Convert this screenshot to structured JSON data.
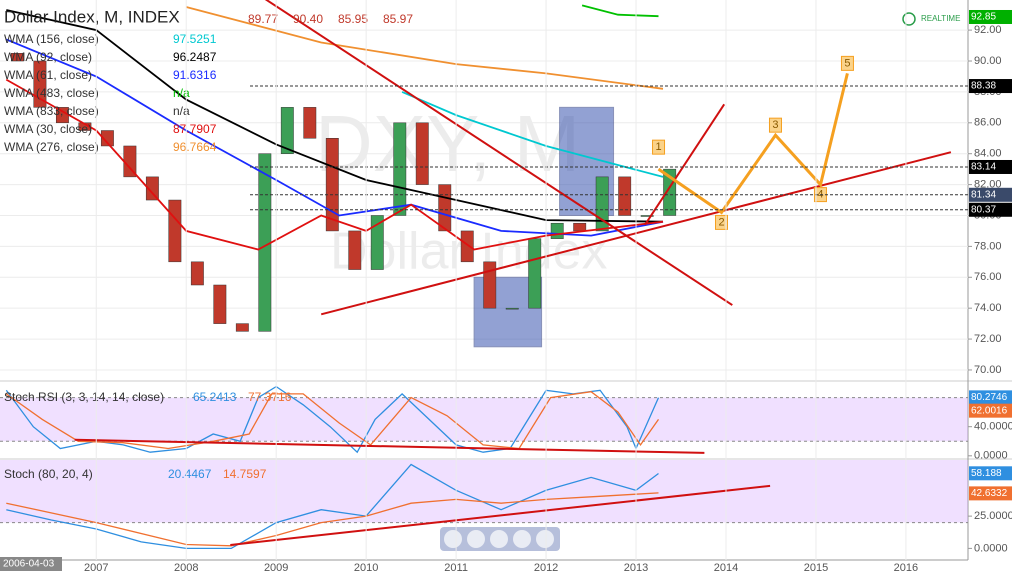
{
  "chart_data": [
    {
      "type": "candlestick",
      "title": "Dollar Index, M, INDEX",
      "last_bar": {
        "values": [
          89.77,
          90.4,
          85.95,
          85.97
        ],
        "value_labels": [
          "89.77",
          "90.40",
          "85.95",
          "85.97"
        ]
      },
      "realtime": "REALTIME",
      "watermark": [
        "DXY, M",
        "Dollar Index"
      ],
      "date_label": "2006-04-03",
      "xlim": [
        2005.93,
        2016.69
      ],
      "xticks": [
        2007,
        2008,
        2009,
        2010,
        2011,
        2012,
        2013,
        2014,
        2015,
        2016
      ],
      "ylim": [
        69.35,
        93.95
      ],
      "yticks": [
        {
          "value": 70,
          "label": "70.00"
        },
        {
          "value": 72,
          "label": "72.00"
        },
        {
          "value": 74,
          "label": "74.00"
        },
        {
          "value": 76,
          "label": "76.00"
        },
        {
          "value": 78,
          "label": "78.00"
        },
        {
          "value": 80,
          "label": "80.00"
        },
        {
          "value": 82,
          "label": "82.00"
        },
        {
          "value": 84,
          "label": "84.00"
        },
        {
          "value": 86,
          "label": "86.00"
        },
        {
          "value": 88,
          "label": "88.00"
        },
        {
          "value": 90,
          "label": "90.00"
        },
        {
          "value": 92,
          "label": "92.00"
        }
      ],
      "grid": true,
      "up_color": "#3c9f56",
      "down_color": "#c0392b",
      "x": [
        2006,
        2006.25,
        2006.5,
        2006.75,
        2007,
        2007.25,
        2007.5,
        2007.75,
        2008,
        2008.25,
        2008.5,
        2008.75,
        2009,
        2009.25,
        2009.5,
        2009.75,
        2010,
        2010.25,
        2010.5,
        2010.75,
        2011,
        2011.25,
        2011.5,
        2011.75,
        2012,
        2012.25,
        2012.5,
        2012.75,
        2013,
        2013.25
      ],
      "open": [
        90.5,
        90,
        87,
        86,
        85.5,
        84.5,
        82.5,
        81,
        77,
        75.5,
        73,
        72.5,
        84,
        87,
        85,
        79,
        76.5,
        80,
        86,
        82,
        79,
        77,
        74,
        74,
        78.5,
        79.5,
        79,
        82.5,
        80,
        80
      ],
      "close": [
        90,
        87,
        86,
        85.5,
        84.5,
        82.5,
        81,
        77,
        75.5,
        73,
        72.5,
        84,
        87,
        85,
        79,
        76.5,
        80,
        86,
        82,
        79,
        77,
        74,
        74,
        78.5,
        79.5,
        79,
        82.5,
        80,
        80,
        83
      ],
      "indicators": [
        {
          "name": "WMA (156, close)",
          "value": 97.5251,
          "color": "#00c8d0",
          "x": [
            2010.4,
            2011,
            2012,
            2013.3
          ],
          "values": [
            88,
            86.5,
            84.5,
            82.5
          ]
        },
        {
          "name": "WMA (92, close)",
          "value": 96.2487,
          "color": "#000000",
          "x": [
            2006,
            2007,
            2008,
            2009,
            2010,
            2011,
            2012,
            2013.3
          ],
          "values": [
            93.3,
            92,
            87.5,
            84.6,
            82.3,
            81,
            79.7,
            79.6
          ]
        },
        {
          "name": "WMA (61, close)",
          "value": 91.6316,
          "color": "#1a2bff",
          "x": [
            2006,
            2007,
            2008,
            2009,
            2009.7,
            2010.5,
            2011.5,
            2012.5,
            2013.3
          ],
          "values": [
            91.4,
            89,
            85.5,
            82.3,
            80,
            80.7,
            79,
            78.7,
            79.6
          ]
        },
        {
          "name": "WMA (483, close)",
          "value": "n/a",
          "color": "#00c000",
          "x": [
            2012.4,
            2012.8,
            2013.25
          ],
          "values": [
            93.6,
            93,
            92.9
          ]
        },
        {
          "name": "WMA (833, close)",
          "value": "n/a",
          "color": "#333333"
        },
        {
          "name": "WMA (30, close)",
          "value": 87.7907,
          "color": "#e01010",
          "x": [
            2006,
            2007,
            2008,
            2008.8,
            2009.5,
            2010,
            2010.5,
            2011.2,
            2012,
            2013.3
          ],
          "values": [
            88.8,
            85.5,
            79,
            77.8,
            80,
            79,
            80.7,
            77.8,
            78.7,
            79.6
          ]
        },
        {
          "name": "WMA (276, close)",
          "value": 96.7664,
          "color": "#f09030",
          "x": [
            2008,
            2009.5,
            2011,
            2012,
            2013.3
          ],
          "values": [
            93.5,
            91.2,
            89.8,
            89.2,
            88.2
          ]
        }
      ],
      "boxes": [
        {
          "x": [
            2011.2,
            2011.95
          ],
          "values": [
            71.5,
            76
          ]
        },
        {
          "x": [
            2012.15,
            2012.75
          ],
          "values": [
            80,
            87
          ]
        }
      ],
      "trendlines": [
        {
          "color": "#d01010",
          "x": [
            2008.88,
            2014.07
          ],
          "values": [
            94,
            74.2
          ]
        },
        {
          "color": "#d01010",
          "x": [
            2009.5,
            2016.5
          ],
          "values": [
            73.6,
            84.1
          ]
        },
        {
          "color": "#d01010",
          "x": [
            2013.1,
            2013.98
          ],
          "values": [
            79.4,
            87.2
          ]
        }
      ],
      "projection": {
        "color": "#f5a020",
        "x": [
          2013.25,
          2013.95,
          2014.55,
          2015.05,
          2015.35
        ],
        "values": [
          83,
          80.2,
          85.2,
          82,
          89.2
        ],
        "labels": [
          "1",
          "2",
          "3",
          "4",
          "5"
        ]
      },
      "price_labels": [
        {
          "value": 92.85,
          "color": "#00b000"
        },
        {
          "value": 88.38,
          "color": "#000000"
        },
        {
          "value": 83.14,
          "color": "#000000"
        },
        {
          "value": 81.34,
          "color": "#3a4a6a"
        },
        {
          "value": 80.37,
          "color": "#000000"
        }
      ]
    },
    {
      "type": "line",
      "title": "Stoch RSI (3, 3, 14, 14, close)",
      "ylim": [
        -3,
        100
      ],
      "yticks": [
        {
          "value": 40,
          "label": "40.0000"
        },
        {
          "value": 0,
          "label": "0.0000"
        }
      ],
      "band": [
        20,
        80
      ],
      "series": [
        {
          "value": 65.2413,
          "color": "#2f8fe0",
          "x": [
            2006,
            2006.3,
            2006.6,
            2007,
            2007.3,
            2007.6,
            2008,
            2008.3,
            2008.6,
            2008.8,
            2009,
            2009.3,
            2009.6,
            2009.9,
            2010.1,
            2010.4,
            2010.7,
            2011,
            2011.3,
            2011.6,
            2011.8,
            2012,
            2012.3,
            2012.6,
            2012.9,
            2013,
            2013.25
          ],
          "values": [
            90,
            40,
            10,
            20,
            15,
            5,
            10,
            30,
            20,
            80,
            95,
            70,
            40,
            5,
            50,
            85,
            50,
            15,
            5,
            10,
            50,
            90,
            85,
            90,
            40,
            10,
            80
          ]
        },
        {
          "value": 77.3716,
          "color": "#f07030",
          "x": [
            2006,
            2006.4,
            2006.8,
            2007.3,
            2007.8,
            2008.3,
            2008.7,
            2008.95,
            2009.3,
            2009.7,
            2010.05,
            2010.5,
            2010.9,
            2011.3,
            2011.7,
            2012.05,
            2012.5,
            2012.8,
            2013.05,
            2013.25
          ],
          "values": [
            85,
            50,
            20,
            18,
            10,
            20,
            30,
            85,
            85,
            45,
            15,
            80,
            55,
            15,
            10,
            80,
            88,
            60,
            15,
            50
          ]
        }
      ],
      "trendline": {
        "color": "#d01010",
        "x": [
          2006.76,
          2013.76
        ],
        "values": [
          22,
          4
        ]
      },
      "price_labels": [
        {
          "value": 80.2746,
          "color": "#2f8fe0"
        },
        {
          "value": 62.0016,
          "color": "#f07030"
        }
      ]
    },
    {
      "type": "line",
      "title": "Stoch (80, 20, 4)",
      "ylim": [
        -9,
        68.5
      ],
      "yticks": [
        {
          "value": 25,
          "label": "25.0000"
        },
        {
          "value": 0,
          "label": "0.0000"
        }
      ],
      "band": [
        20,
        80
      ],
      "series": [
        {
          "value": 20.4467,
          "color": "#2f8fe0",
          "x": [
            2006,
            2006.5,
            2007,
            2007.5,
            2008,
            2008.5,
            2009,
            2009.5,
            2010,
            2010.5,
            2011,
            2011.5,
            2012,
            2012.5,
            2013,
            2013.25
          ],
          "values": [
            30,
            22,
            15,
            5,
            0,
            0,
            20,
            30,
            25,
            65,
            45,
            30,
            45,
            55,
            45,
            58
          ]
        },
        {
          "value": 14.7597,
          "color": "#f07030",
          "x": [
            2006,
            2007,
            2008,
            2008.5,
            2009,
            2009.5,
            2010,
            2010.5,
            2011,
            2011.5,
            2012,
            2012.5,
            2013,
            2013.25
          ],
          "values": [
            35,
            20,
            3,
            2,
            10,
            20,
            25,
            35,
            38,
            35,
            38,
            40,
            42,
            43
          ]
        }
      ],
      "trendline": {
        "color": "#d01010",
        "x": [
          2008.49,
          2014.49
        ],
        "values": [
          2.6,
          48.4
        ]
      },
      "price_labels": [
        {
          "value": 58.188,
          "color": "#2f8fe0"
        },
        {
          "value": 42.6332,
          "color": "#f07030"
        }
      ]
    }
  ]
}
